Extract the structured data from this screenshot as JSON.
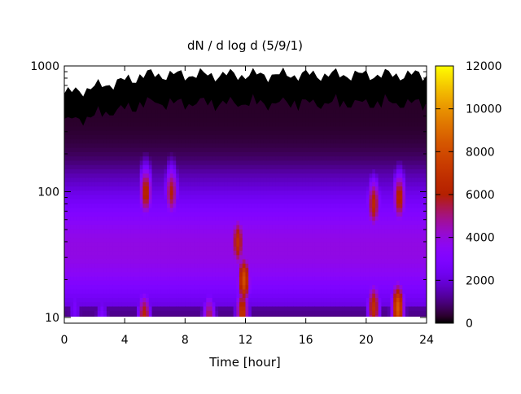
{
  "chart_data": {
    "type": "heatmap",
    "title": "dN / d log d (5/9/1)",
    "xlabel": "Time [hour]",
    "ylabel": "",
    "xlim": [
      0,
      24
    ],
    "ylim": [
      9,
      1000
    ],
    "y_scale": "log",
    "x_ticks": [
      0,
      4,
      8,
      12,
      16,
      20,
      24
    ],
    "y_ticks": [
      10,
      100,
      1000
    ],
    "colorbar": {
      "range": [
        0,
        12000
      ],
      "ticks": [
        0,
        2000,
        4000,
        6000,
        8000,
        10000,
        12000
      ],
      "palette": "gnuplot (black-purple-red-yellow)"
    },
    "series_peaks": [
      {
        "x": 0.7,
        "y": 12,
        "value": 2800
      },
      {
        "x": 2.5,
        "y": 10,
        "value": 3000
      },
      {
        "x": 5.4,
        "y": 100,
        "value": 6500
      },
      {
        "x": 5.3,
        "y": 10,
        "value": 6500
      },
      {
        "x": 7.1,
        "y": 100,
        "value": 6000
      },
      {
        "x": 9.6,
        "y": 10,
        "value": 5500
      },
      {
        "x": 11.5,
        "y": 40,
        "value": 6800
      },
      {
        "x": 11.9,
        "y": 20,
        "value": 8000
      },
      {
        "x": 11.8,
        "y": 11,
        "value": 7000
      },
      {
        "x": 20.5,
        "y": 80,
        "value": 6500
      },
      {
        "x": 20.5,
        "y": 12,
        "value": 6800
      },
      {
        "x": 22.2,
        "y": 90,
        "value": 6500
      },
      {
        "x": 22.1,
        "y": 12,
        "value": 8500
      }
    ]
  }
}
